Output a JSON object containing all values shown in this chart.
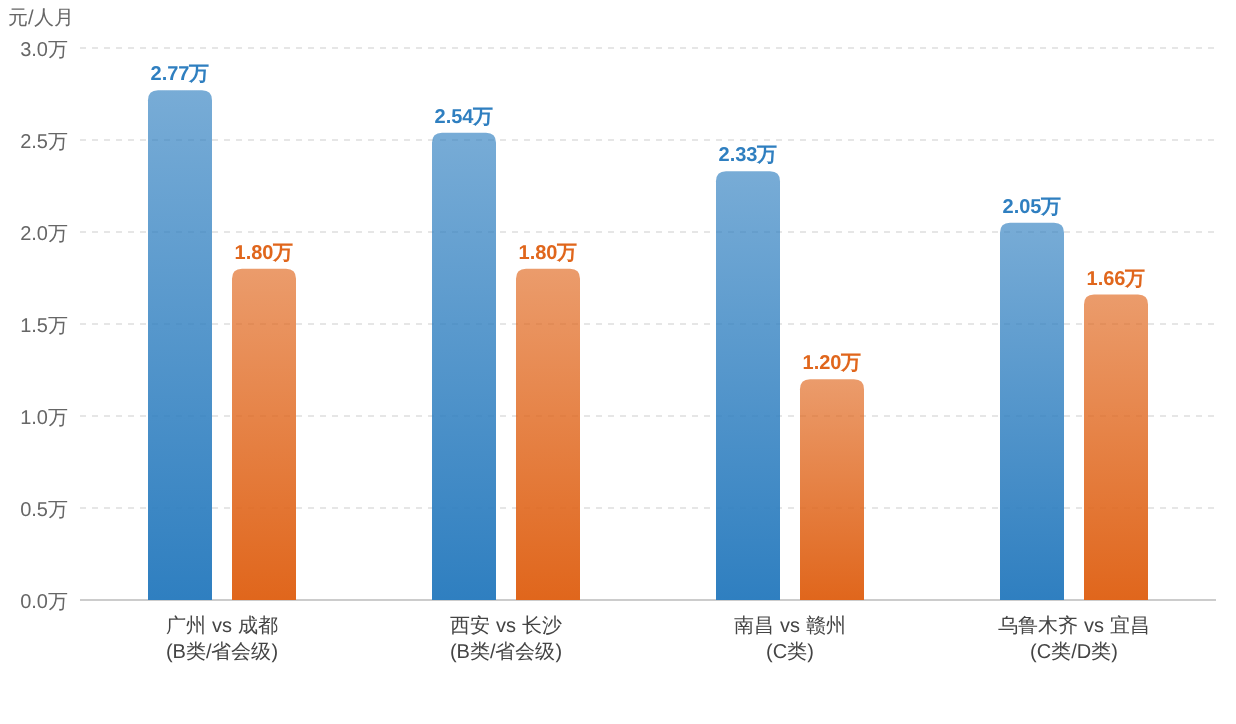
{
  "chart_data": {
    "type": "bar",
    "ylabel": "元/人月",
    "categories": [
      "广州 vs 成都\n(B类/省会级)",
      "西安 vs 长沙\n(B类/省会级)",
      "南昌 vs 赣州\n(C类)",
      "乌鲁木齐 vs 宜昌\n(C类/D类)"
    ],
    "series": [
      {
        "color": "#2f7fc0",
        "values": [
          2.77,
          2.54,
          2.33,
          2.05
        ],
        "value_labels": [
          "2.77万",
          "2.54万",
          "2.33万",
          "2.05万"
        ]
      },
      {
        "color": "#e0661c",
        "values": [
          1.8,
          1.8,
          1.2,
          1.66
        ],
        "value_labels": [
          "1.80万",
          "1.80万",
          "1.20万",
          "1.66万"
        ]
      }
    ],
    "ylim": [
      0,
      3
    ],
    "yticks": [
      {
        "value": 0,
        "label": "0.0万"
      },
      {
        "value": 0.5,
        "label": "0.5万"
      },
      {
        "value": 1,
        "label": "1.0万"
      },
      {
        "value": 1.5,
        "label": "1.5万"
      },
      {
        "value": 2,
        "label": "2.0万"
      },
      {
        "value": 2.5,
        "label": "2.5万"
      },
      {
        "value": 3,
        "label": "3.0万"
      }
    ],
    "grid": "y"
  }
}
